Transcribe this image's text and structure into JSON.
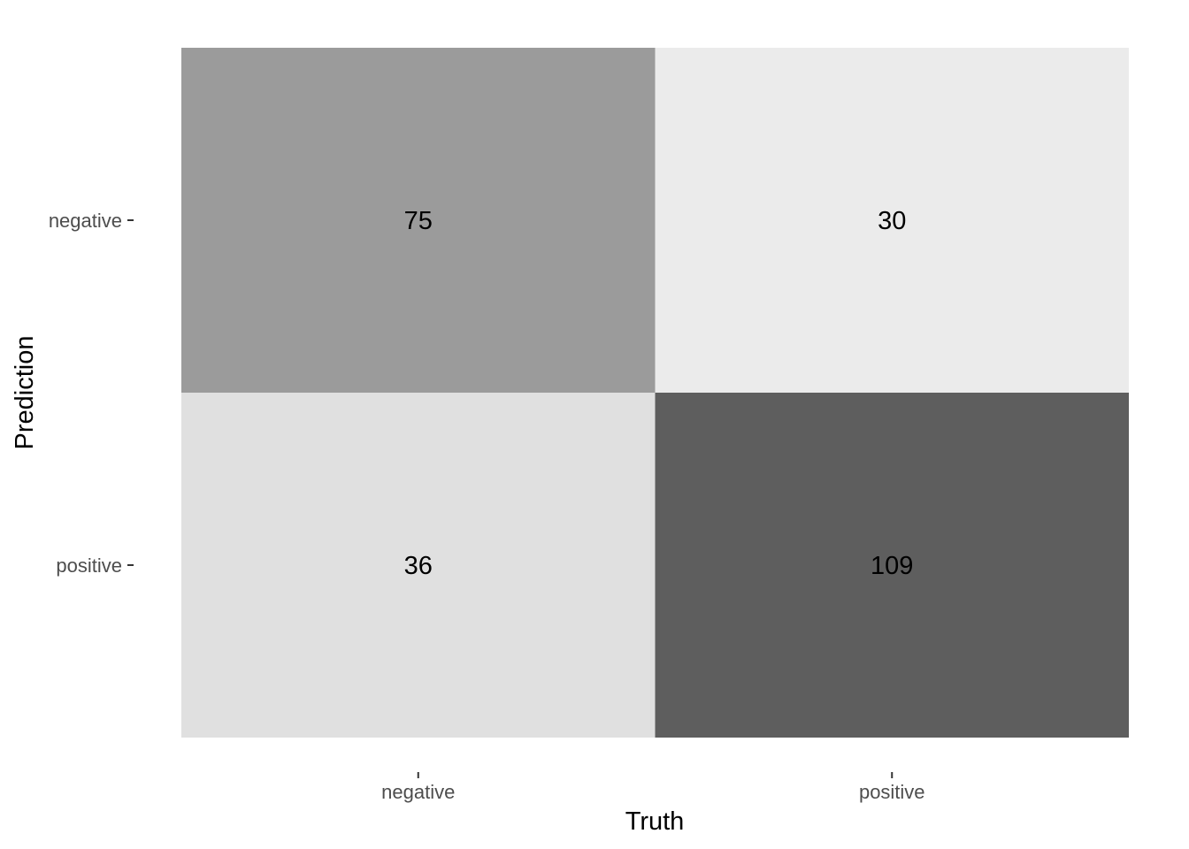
{
  "chart_data": {
    "type": "heatmap",
    "title": "",
    "xlabel": "Truth",
    "ylabel": "Prediction",
    "x_categories": [
      "negative",
      "positive"
    ],
    "y_categories": [
      "negative",
      "positive"
    ],
    "cells": [
      {
        "truth": "negative",
        "prediction": "negative",
        "value": 75
      },
      {
        "truth": "positive",
        "prediction": "negative",
        "value": 30
      },
      {
        "truth": "negative",
        "prediction": "positive",
        "value": 36
      },
      {
        "truth": "positive",
        "prediction": "positive",
        "value": 109
      }
    ],
    "fill_low": "#ebebeb",
    "fill_high": "#5e5e5e"
  }
}
